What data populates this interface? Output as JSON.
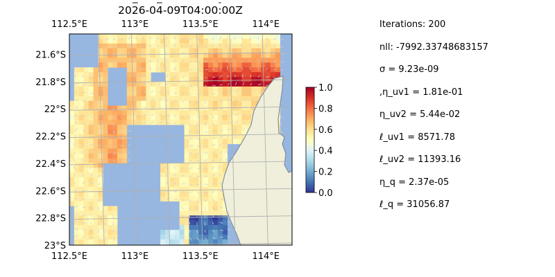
{
  "chart_data": {
    "type": "heatmap",
    "title": "2026-04-09T04:00:00Z",
    "title_overstrike_chars": [
      2,
      6,
      16
    ],
    "x_ticks": [
      "112.5°E",
      "113°E",
      "113.5°E",
      "114°E"
    ],
    "x_tick_values": [
      112.5,
      113.0,
      113.5,
      114.0
    ],
    "y_ticks": [
      "21.6°S",
      "21.8°S",
      "22°S",
      "22.2°S",
      "22.4°S",
      "22.6°S",
      "22.8°S",
      "23°S"
    ],
    "y_tick_values": [
      -21.6,
      -21.8,
      -22.0,
      -22.2,
      -22.4,
      -22.6,
      -22.8,
      -23.0
    ],
    "xlim": [
      112.5,
      114.2
    ],
    "ylim": [
      -23.0,
      -21.45
    ],
    "grid": true,
    "colorbar": {
      "ticks": [
        "0.0",
        "0.2",
        "0.4",
        "0.6",
        "0.8",
        "1.0"
      ],
      "tick_values": [
        0,
        0.2,
        0.4,
        0.6,
        0.8,
        1.0
      ],
      "range": [
        0,
        1
      ],
      "colormap": "RdYlBu_r"
    },
    "colors": {
      "ocean_background": "#97b6e0",
      "land": "#efefdb",
      "coastline": "#7f8ea4",
      "grid": "#b0b0b0",
      "quiver": "#c8cfe0"
    },
    "field_description_regions": [
      {
        "lon": [
          112.5,
          113.0
        ],
        "lat": [
          -22.65,
          -21.95
        ],
        "value": 0.62
      },
      {
        "lon": [
          113.3,
          113.9
        ],
        "lat": [
          -21.7,
          -21.45
        ],
        "value": 0.5
      },
      {
        "lon": [
          113.55,
          113.95
        ],
        "lat": [
          -23.0,
          -22.8
        ],
        "value": 0.05
      }
    ]
  },
  "stats": [
    "Iterations: 200",
    "nll: -7992.33748683157",
    "σ = 9.23e-09",
    ",η_uv1 = 1.81e-01",
    "η_uv2 = 5.44e-02",
    "ℓ_uv1 = 8571.78",
    "ℓ_uv2 = 11393.16",
    "η_q = 2.37e-05",
    "ℓ_q = 31056.87"
  ]
}
